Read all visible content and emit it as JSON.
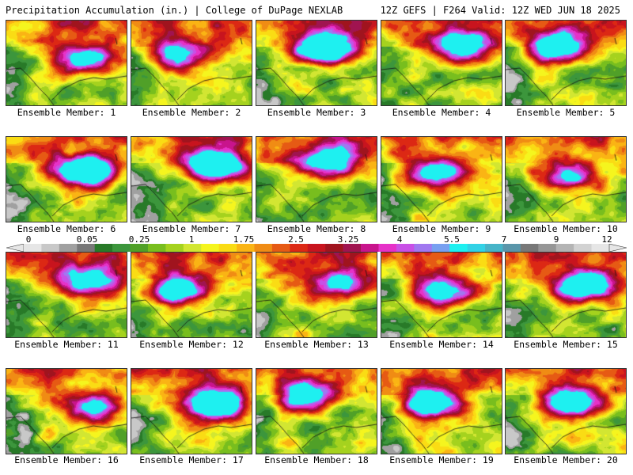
{
  "header": {
    "title": "Precipitation Accumulation (in.) | College of DuPage NEXLAB",
    "run_info": "12Z GEFS | F264 Valid: 12Z WED JUN 18 2025"
  },
  "caption_prefix": "Ensemble Member:",
  "members": [
    {
      "id": 1,
      "caption": "Ensemble Member: 1"
    },
    {
      "id": 2,
      "caption": "Ensemble Member: 2"
    },
    {
      "id": 3,
      "caption": "Ensemble Member: 3"
    },
    {
      "id": 4,
      "caption": "Ensemble Member: 4"
    },
    {
      "id": 5,
      "caption": "Ensemble Member: 5"
    },
    {
      "id": 6,
      "caption": "Ensemble Member: 6"
    },
    {
      "id": 7,
      "caption": "Ensemble Member: 7"
    },
    {
      "id": 8,
      "caption": "Ensemble Member: 8"
    },
    {
      "id": 9,
      "caption": "Ensemble Member: 9"
    },
    {
      "id": 10,
      "caption": "Ensemble Member: 10"
    },
    {
      "id": 11,
      "caption": "Ensemble Member: 11"
    },
    {
      "id": 12,
      "caption": "Ensemble Member: 12"
    },
    {
      "id": 13,
      "caption": "Ensemble Member: 13"
    },
    {
      "id": 14,
      "caption": "Ensemble Member: 14"
    },
    {
      "id": 15,
      "caption": "Ensemble Member: 15"
    },
    {
      "id": 16,
      "caption": "Ensemble Member: 16"
    },
    {
      "id": 17,
      "caption": "Ensemble Member: 17"
    },
    {
      "id": 18,
      "caption": "Ensemble Member: 18"
    },
    {
      "id": 19,
      "caption": "Ensemble Member: 19"
    },
    {
      "id": 20,
      "caption": "Ensemble Member: 20"
    }
  ],
  "colorbar": {
    "labels": [
      "0",
      "0.05",
      "0.25",
      "1",
      "1.75",
      "2.5",
      "3.25",
      "4",
      "5.5",
      "7",
      "9",
      "12"
    ],
    "colors": [
      "#e6e6e6",
      "#c8c8c8",
      "#a0a0a0",
      "#787878",
      "#287a28",
      "#3c963c",
      "#50a028",
      "#78be1e",
      "#a5d21e",
      "#d2e632",
      "#f5f51e",
      "#fadc14",
      "#fab414",
      "#f08c14",
      "#e65a14",
      "#dc2814",
      "#c8141e",
      "#a0141e",
      "#a01450",
      "#c8148c",
      "#e632c8",
      "#c850e6",
      "#a078f0",
      "#78a0f0",
      "#1ef0f0",
      "#32d2e6",
      "#46b4c8",
      "#5a96aa",
      "#787878",
      "#969696",
      "#b4b4b4",
      "#d2d2d2",
      "#e6e6e6"
    ]
  }
}
